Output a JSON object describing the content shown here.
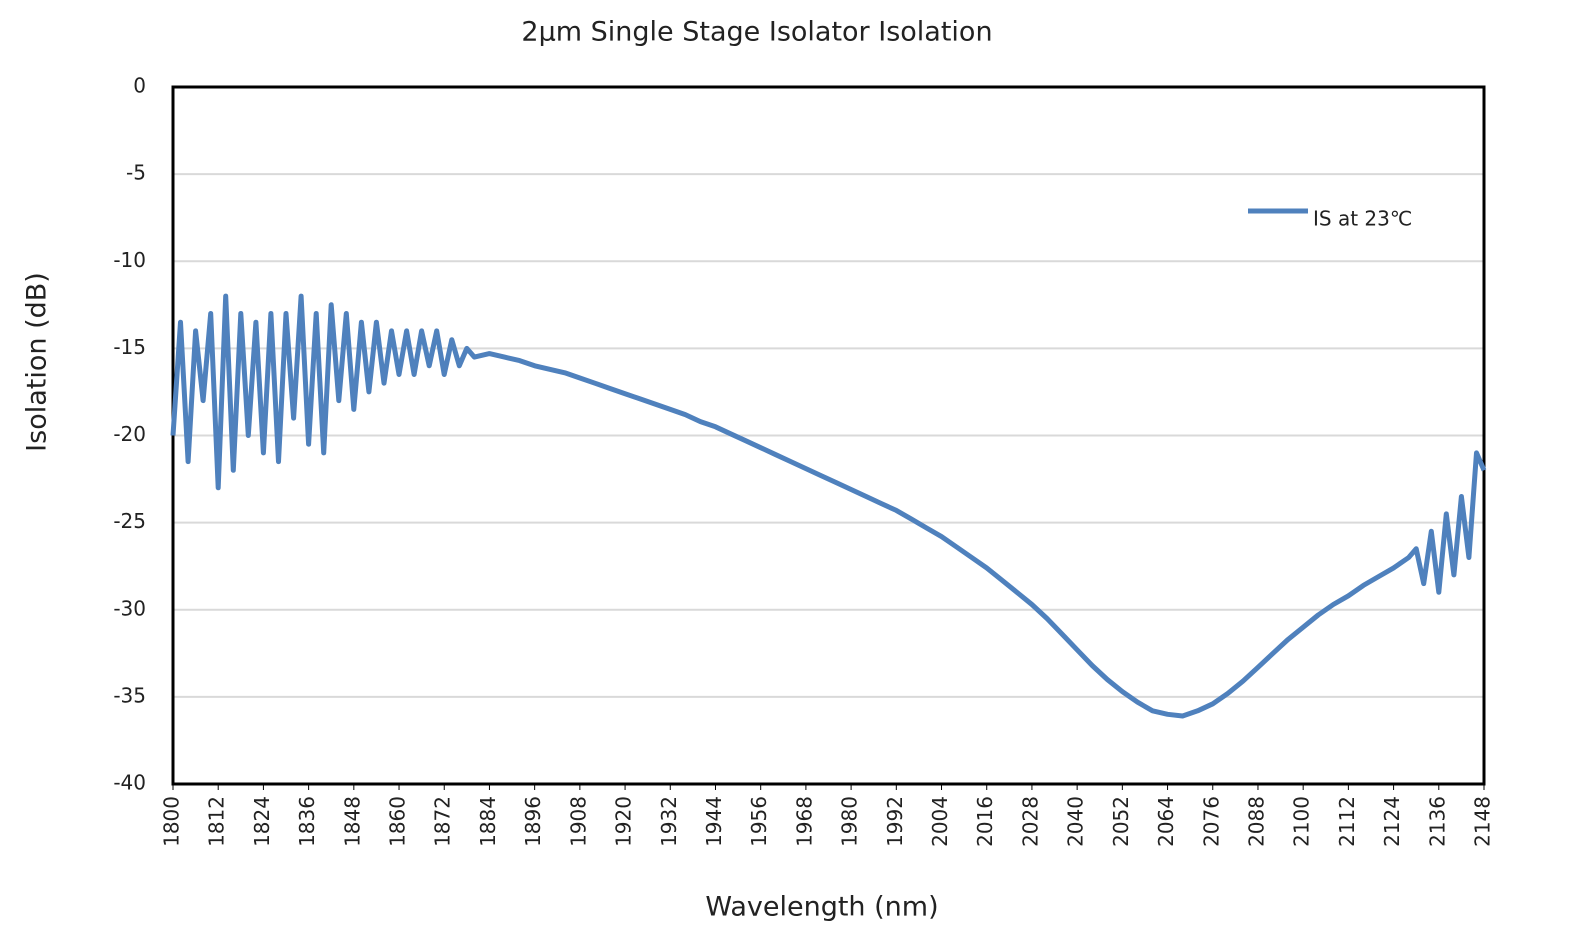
{
  "chart_data": {
    "type": "line",
    "title": "2µm Single Stage Isolator Isolation",
    "x_label": "Wavelength (nm)",
    "y_label": "Isolation (dB)",
    "x": [
      1800,
      1802,
      1804,
      1806,
      1808,
      1810,
      1812,
      1814,
      1816,
      1818,
      1820,
      1822,
      1824,
      1826,
      1828,
      1830,
      1832,
      1834,
      1836,
      1838,
      1840,
      1842,
      1844,
      1846,
      1848,
      1850,
      1852,
      1854,
      1856,
      1858,
      1860,
      1862,
      1864,
      1866,
      1868,
      1870,
      1872,
      1874,
      1876,
      1878,
      1880,
      1884,
      1888,
      1892,
      1896,
      1900,
      1904,
      1908,
      1912,
      1916,
      1920,
      1924,
      1928,
      1932,
      1936,
      1940,
      1944,
      1948,
      1952,
      1956,
      1960,
      1964,
      1968,
      1972,
      1976,
      1980,
      1984,
      1988,
      1992,
      1996,
      2000,
      2004,
      2008,
      2012,
      2016,
      2020,
      2024,
      2028,
      2032,
      2036,
      2040,
      2044,
      2048,
      2052,
      2056,
      2060,
      2064,
      2068,
      2072,
      2076,
      2080,
      2084,
      2088,
      2092,
      2096,
      2100,
      2104,
      2108,
      2112,
      2116,
      2120,
      2124,
      2128,
      2130,
      2132,
      2134,
      2136,
      2138,
      2140,
      2142,
      2144,
      2146,
      2148
    ],
    "series": [
      {
        "name": "IS at 23℃",
        "color": "#4f81bd",
        "values": [
          -20,
          -13.5,
          -21.5,
          -14,
          -18,
          -13,
          -23,
          -12,
          -22,
          -13,
          -20,
          -13.5,
          -21,
          -13,
          -21.5,
          -13,
          -19,
          -12,
          -20.5,
          -13,
          -21,
          -12.5,
          -18,
          -13,
          -18.5,
          -13.5,
          -17.5,
          -13.5,
          -17,
          -14,
          -16.5,
          -14,
          -16.5,
          -14,
          -16,
          -14,
          -16.5,
          -14.5,
          -16,
          -15,
          -15.5,
          -15.3,
          -15.5,
          -15.7,
          -16,
          -16.2,
          -16.4,
          -16.7,
          -17,
          -17.3,
          -17.6,
          -17.9,
          -18.2,
          -18.5,
          -18.8,
          -19.2,
          -19.5,
          -19.9,
          -20.3,
          -20.7,
          -21.1,
          -21.5,
          -21.9,
          -22.3,
          -22.7,
          -23.1,
          -23.5,
          -23.9,
          -24.3,
          -24.8,
          -25.3,
          -25.8,
          -26.4,
          -27,
          -27.6,
          -28.3,
          -29,
          -29.7,
          -30.5,
          -31.4,
          -32.3,
          -33.2,
          -34,
          -34.7,
          -35.3,
          -35.8,
          -36,
          -36.1,
          -35.8,
          -35.4,
          -34.8,
          -34.1,
          -33.3,
          -32.5,
          -31.7,
          -31,
          -30.3,
          -29.7,
          -29.2,
          -28.6,
          -28.1,
          -27.6,
          -27,
          -26.5,
          -28.5,
          -25.5,
          -29,
          -24.5,
          -28,
          -23.5,
          -27,
          -21,
          -22
        ]
      }
    ],
    "xlim": [
      1800,
      2148
    ],
    "xticks": [
      1800,
      1812,
      1824,
      1836,
      1848,
      1860,
      1872,
      1884,
      1896,
      1908,
      1920,
      1932,
      1944,
      1956,
      1968,
      1980,
      1992,
      2004,
      2016,
      2028,
      2040,
      2052,
      2064,
      2076,
      2088,
      2100,
      2112,
      2124,
      2136,
      2148
    ],
    "ylim": [
      -40,
      0
    ],
    "yticks": [
      0,
      -5,
      -10,
      -15,
      -20,
      -25,
      -30,
      -35,
      -40
    ],
    "grid": true,
    "legend": "top-right"
  }
}
